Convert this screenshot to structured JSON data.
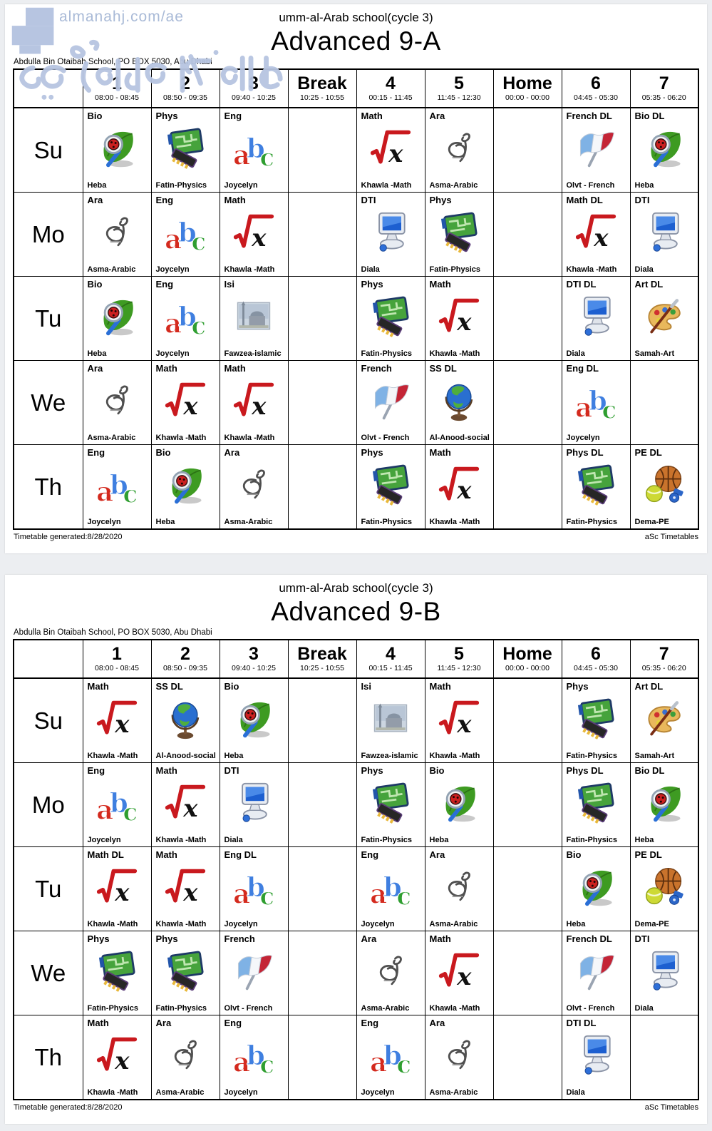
{
  "watermark": {
    "site": "almanahj.com/ae",
    "accent_color": "#b7c5e1",
    "text_color": "#a9bad7"
  },
  "columns": [
    {
      "label": "1",
      "time": "08:00 - 08:45"
    },
    {
      "label": "2",
      "time": "08:50 - 09:35"
    },
    {
      "label": "3",
      "time": "09:40 - 10:25"
    },
    {
      "label": "Break",
      "time": "10:25 - 10:55"
    },
    {
      "label": "4",
      "time": "00:15 - 11:45"
    },
    {
      "label": "5",
      "time": "11:45 - 12:30"
    },
    {
      "label": "Home",
      "time": "00:00 - 00:00"
    },
    {
      "label": "6",
      "time": "04:45 - 05:30"
    },
    {
      "label": "7",
      "time": "05:35 - 06:20"
    }
  ],
  "pages": [
    {
      "school": "umm-al-Arab school(cycle 3)",
      "title": "Advanced 9-A",
      "address": "Abdulla Bin Otaibah School, PO BOX 5030, Abu Dhabi",
      "footer_left": "Timetable generated:8/28/2020",
      "footer_right": "aSc Timetables",
      "days": [
        {
          "label": "Su",
          "cells": [
            {
              "subject": "Bio",
              "teacher": "Heba",
              "icon": "bio-icon"
            },
            {
              "subject": "Phys",
              "teacher": "Fatin-Physics",
              "icon": "phys-icon"
            },
            {
              "subject": "Eng",
              "teacher": "Joycelyn",
              "icon": "eng-icon"
            },
            null,
            {
              "subject": "Math",
              "teacher": "Khawla -Math",
              "icon": "math-icon"
            },
            {
              "subject": "Ara",
              "teacher": "Asma-Arabic",
              "icon": "ara-icon"
            },
            null,
            {
              "subject": "French DL",
              "teacher": "Olvt - French",
              "icon": "french-icon"
            },
            {
              "subject": "Bio DL",
              "teacher": "Heba",
              "icon": "bio-icon"
            }
          ]
        },
        {
          "label": "Mo",
          "cells": [
            {
              "subject": "Ara",
              "teacher": "Asma-Arabic",
              "icon": "ara-icon"
            },
            {
              "subject": "Eng",
              "teacher": "Joycelyn",
              "icon": "eng-icon"
            },
            {
              "subject": "Math",
              "teacher": "Khawla -Math",
              "icon": "math-icon"
            },
            null,
            {
              "subject": "DTI",
              "teacher": "Diala",
              "icon": "dti-icon"
            },
            {
              "subject": "Phys",
              "teacher": "Fatin-Physics",
              "icon": "phys-icon"
            },
            null,
            {
              "subject": "Math DL",
              "teacher": "Khawla -Math",
              "icon": "math-icon"
            },
            {
              "subject": "DTI",
              "teacher": "Diala",
              "icon": "dti-icon"
            }
          ]
        },
        {
          "label": "Tu",
          "cells": [
            {
              "subject": "Bio",
              "teacher": "Heba",
              "icon": "bio-icon"
            },
            {
              "subject": "Eng",
              "teacher": "Joycelyn",
              "icon": "eng-icon"
            },
            {
              "subject": "Isi",
              "teacher": "Fawzea-islamic",
              "icon": "isi-icon"
            },
            null,
            {
              "subject": "Phys",
              "teacher": "Fatin-Physics",
              "icon": "phys-icon"
            },
            {
              "subject": "Math",
              "teacher": "Khawla -Math",
              "icon": "math-icon"
            },
            null,
            {
              "subject": "DTI DL",
              "teacher": "Diala",
              "icon": "dti-icon"
            },
            {
              "subject": "Art DL",
              "teacher": "Samah-Art",
              "icon": "art-icon"
            }
          ]
        },
        {
          "label": "We",
          "cells": [
            {
              "subject": "Ara",
              "teacher": "Asma-Arabic",
              "icon": "ara-icon"
            },
            {
              "subject": "Math",
              "teacher": "Khawla -Math",
              "icon": "math-icon"
            },
            {
              "subject": "Math",
              "teacher": "Khawla -Math",
              "icon": "math-icon"
            },
            null,
            {
              "subject": "French",
              "teacher": "Olvt - French",
              "icon": "french-icon"
            },
            {
              "subject": "SS DL",
              "teacher": "Al-Anood-social",
              "icon": "globe-icon"
            },
            null,
            {
              "subject": "Eng DL",
              "teacher": "Joycelyn",
              "icon": "eng-icon"
            },
            null
          ]
        },
        {
          "label": "Th",
          "cells": [
            {
              "subject": "Eng",
              "teacher": "Joycelyn",
              "icon": "eng-icon"
            },
            {
              "subject": "Bio",
              "teacher": "Heba",
              "icon": "bio-icon"
            },
            {
              "subject": "Ara",
              "teacher": "Asma-Arabic",
              "icon": "ara-icon"
            },
            null,
            {
              "subject": "Phys",
              "teacher": "Fatin-Physics",
              "icon": "phys-icon"
            },
            {
              "subject": "Math",
              "teacher": "Khawla -Math",
              "icon": "math-icon"
            },
            null,
            {
              "subject": "Phys DL",
              "teacher": "Fatin-Physics",
              "icon": "phys-icon"
            },
            {
              "subject": "PE DL",
              "teacher": "Dema-PE",
              "icon": "pe-icon"
            }
          ]
        }
      ]
    },
    {
      "school": "umm-al-Arab school(cycle 3)",
      "title": "Advanced 9-B",
      "address": "Abdulla Bin Otaibah School, PO BOX 5030, Abu Dhabi",
      "footer_left": "Timetable generated:8/28/2020",
      "footer_right": "aSc Timetables",
      "days": [
        {
          "label": "Su",
          "cells": [
            {
              "subject": "Math",
              "teacher": "Khawla -Math",
              "icon": "math-icon"
            },
            {
              "subject": "SS DL",
              "teacher": "Al-Anood-social",
              "icon": "globe-icon"
            },
            {
              "subject": "Bio",
              "teacher": "Heba",
              "icon": "bio-icon"
            },
            null,
            {
              "subject": "Isi",
              "teacher": "Fawzea-islamic",
              "icon": "isi-icon"
            },
            {
              "subject": "Math",
              "teacher": "Khawla -Math",
              "icon": "math-icon"
            },
            null,
            {
              "subject": "Phys",
              "teacher": "Fatin-Physics",
              "icon": "phys-icon"
            },
            {
              "subject": "Art DL",
              "teacher": "Samah-Art",
              "icon": "art-icon"
            }
          ]
        },
        {
          "label": "Mo",
          "cells": [
            {
              "subject": "Eng",
              "teacher": "Joycelyn",
              "icon": "eng-icon"
            },
            {
              "subject": "Math",
              "teacher": "Khawla -Math",
              "icon": "math-icon"
            },
            {
              "subject": "DTI",
              "teacher": "Diala",
              "icon": "dti-icon"
            },
            null,
            {
              "subject": "Phys",
              "teacher": "Fatin-Physics",
              "icon": "phys-icon"
            },
            {
              "subject": "Bio",
              "teacher": "Heba",
              "icon": "bio-icon"
            },
            null,
            {
              "subject": "Phys DL",
              "teacher": "Fatin-Physics",
              "icon": "phys-icon"
            },
            {
              "subject": "Bio DL",
              "teacher": "Heba",
              "icon": "bio-icon"
            }
          ]
        },
        {
          "label": "Tu",
          "cells": [
            {
              "subject": "Math DL",
              "teacher": "Khawla -Math",
              "icon": "math-icon"
            },
            {
              "subject": "Math",
              "teacher": "Khawla -Math",
              "icon": "math-icon"
            },
            {
              "subject": "Eng DL",
              "teacher": "Joycelyn",
              "icon": "eng-icon"
            },
            null,
            {
              "subject": "Eng",
              "teacher": "Joycelyn",
              "icon": "eng-icon"
            },
            {
              "subject": "Ara",
              "teacher": "Asma-Arabic",
              "icon": "ara-icon"
            },
            null,
            {
              "subject": "Bio",
              "teacher": "Heba",
              "icon": "bio-icon"
            },
            {
              "subject": "PE DL",
              "teacher": "Dema-PE",
              "icon": "pe-icon"
            }
          ]
        },
        {
          "label": "We",
          "cells": [
            {
              "subject": "Phys",
              "teacher": "Fatin-Physics",
              "icon": "phys-icon"
            },
            {
              "subject": "Phys",
              "teacher": "Fatin-Physics",
              "icon": "phys-icon"
            },
            {
              "subject": "French",
              "teacher": "Olvt - French",
              "icon": "french-icon"
            },
            null,
            {
              "subject": "Ara",
              "teacher": "Asma-Arabic",
              "icon": "ara-icon"
            },
            {
              "subject": "Math",
              "teacher": "Khawla -Math",
              "icon": "math-icon"
            },
            null,
            {
              "subject": "French DL",
              "teacher": "Olvt - French",
              "icon": "french-icon"
            },
            {
              "subject": "DTI",
              "teacher": "Diala",
              "icon": "dti-icon"
            }
          ]
        },
        {
          "label": "Th",
          "cells": [
            {
              "subject": "Math",
              "teacher": "Khawla -Math",
              "icon": "math-icon"
            },
            {
              "subject": "Ara",
              "teacher": "Asma-Arabic",
              "icon": "ara-icon"
            },
            {
              "subject": "Eng",
              "teacher": "Joycelyn",
              "icon": "eng-icon"
            },
            null,
            {
              "subject": "Eng",
              "teacher": "Joycelyn",
              "icon": "eng-icon"
            },
            {
              "subject": "Ara",
              "teacher": "Asma-Arabic",
              "icon": "ara-icon"
            },
            null,
            {
              "subject": "DTI DL",
              "teacher": "Diala",
              "icon": "dti-icon"
            },
            null
          ]
        }
      ]
    }
  ]
}
